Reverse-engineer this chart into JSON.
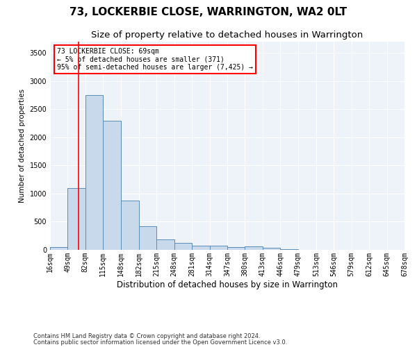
{
  "title": "73, LOCKERBIE CLOSE, WARRINGTON, WA2 0LT",
  "subtitle": "Size of property relative to detached houses in Warrington",
  "xlabel": "Distribution of detached houses by size in Warrington",
  "ylabel": "Number of detached properties",
  "footnote1": "Contains HM Land Registry data © Crown copyright and database right 2024.",
  "footnote2": "Contains public sector information licensed under the Open Government Licence v3.0.",
  "annotation_line1": "73 LOCKERBIE CLOSE: 69sqm",
  "annotation_line2": "← 5% of detached houses are smaller (371)",
  "annotation_line3": "95% of semi-detached houses are larger (7,425) →",
  "bar_color": "#c9d9ec",
  "bar_edge_color": "#5b8db8",
  "red_line_x": 69,
  "bin_edges": [
    16,
    49,
    82,
    115,
    148,
    182,
    215,
    248,
    281,
    314,
    347,
    380,
    413,
    446,
    479,
    513,
    546,
    579,
    612,
    645,
    678
  ],
  "bar_heights": [
    50,
    1100,
    2750,
    2300,
    880,
    415,
    185,
    120,
    75,
    70,
    50,
    60,
    40,
    10,
    5,
    2,
    1,
    0,
    0,
    0
  ],
  "ylim": [
    0,
    3700
  ],
  "yticks": [
    0,
    500,
    1000,
    1500,
    2000,
    2500,
    3000,
    3500
  ],
  "background_color": "#eef2f9",
  "grid_color": "#ffffff",
  "title_fontsize": 11,
  "subtitle_fontsize": 9.5,
  "xlabel_fontsize": 8.5,
  "ylabel_fontsize": 7.5,
  "tick_fontsize": 7,
  "footnote_fontsize": 6
}
